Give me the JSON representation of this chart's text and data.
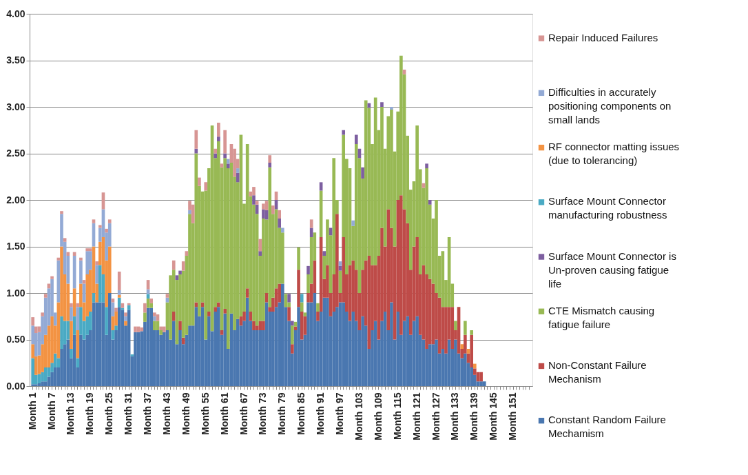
{
  "chart_data": {
    "type": "bar",
    "stacked": true,
    "legend": "right",
    "grid": "y",
    "categories": [
      "Month 1",
      null,
      null,
      null,
      null,
      null,
      "Month 7",
      null,
      null,
      null,
      null,
      null,
      "Month 13",
      null,
      null,
      null,
      null,
      null,
      "Month 19",
      null,
      null,
      null,
      null,
      null,
      "Month 25",
      null,
      null,
      null,
      null,
      null,
      "Month 31",
      null,
      null,
      null,
      null,
      null,
      "Month 37",
      null,
      null,
      null,
      null,
      null,
      "Month 43",
      null,
      null,
      null,
      null,
      null,
      "Month 49",
      null,
      null,
      null,
      null,
      null,
      "Month 55",
      null,
      null,
      null,
      null,
      null,
      "Month 61",
      null,
      null,
      null,
      null,
      null,
      "Month 67",
      null,
      null,
      null,
      null,
      null,
      "Month 73",
      null,
      null,
      null,
      null,
      null,
      "Month 79",
      null,
      null,
      null,
      null,
      null,
      "Month 85",
      null,
      null,
      null,
      null,
      null,
      "Month 91",
      null,
      null,
      null,
      null,
      null,
      "Month 97",
      null,
      null,
      null,
      null,
      null,
      "Month 103",
      null,
      null,
      null,
      null,
      null,
      "Month 109",
      null,
      null,
      null,
      null,
      null,
      "Month 115",
      null,
      null,
      null,
      null,
      null,
      "Month 121",
      null,
      null,
      null,
      null,
      null,
      "Month 127",
      null,
      null,
      null,
      null,
      null,
      "Month 133",
      null,
      null,
      null,
      null,
      null,
      "Month 139",
      null,
      null,
      null,
      null,
      null,
      "Month 145",
      null,
      null,
      null,
      null,
      null,
      "Month 151",
      null,
      null,
      null,
      null,
      null
    ],
    "ylim": [
      0,
      4
    ],
    "yticks": [
      {
        "value": 0,
        "label": "0.00"
      },
      {
        "value": 0.5,
        "label": "0.50"
      },
      {
        "value": 1,
        "label": "1.00"
      },
      {
        "value": 1.5,
        "label": "1.50"
      },
      {
        "value": 2,
        "label": "2.00"
      },
      {
        "value": 2.5,
        "label": "2.50"
      },
      {
        "value": 3,
        "label": "3.00"
      },
      {
        "value": 3.5,
        "label": "3.50"
      },
      {
        "value": 4,
        "label": "4.00"
      }
    ],
    "series": [
      {
        "name": "Constant Random Failure Mechamism",
        "color": "#4a77b0",
        "values": [
          0.02,
          0.02,
          0.03,
          0.05,
          0.05,
          0.1,
          0.15,
          0.2,
          0.2,
          0.4,
          0.45,
          0.5,
          0.3,
          0.55,
          0.2,
          0.55,
          0.5,
          0.55,
          0.6,
          0.9,
          0.9,
          0.9,
          0.9,
          0.55,
          1.0,
          0.5,
          0.6,
          0.85,
          0.82,
          0.65,
          0.82,
          0.32,
          0.58,
          0.58,
          0.59,
          0.69,
          0.84,
          0.84,
          0.6,
          0.6,
          0.55,
          0.58,
          0.6,
          0.5,
          0.7,
          0.45,
          0.6,
          0.45,
          0.55,
          0.65,
          0.65,
          0.85,
          0.75,
          0.85,
          0.5,
          0.75,
          0.59,
          0.8,
          0.85,
          0.55,
          0.78,
          0.4,
          0.78,
          0.6,
          0.72,
          0.65,
          0.7,
          0.95,
          0.7,
          0.6,
          0.6,
          0.6,
          0.6,
          0.9,
          0.8,
          0.8,
          0.85,
          0.9,
          1.1,
          0.85,
          0.7,
          0.35,
          0.6,
          0.85,
          0.5,
          0.55,
          0.9,
          0.9,
          1.0,
          0.7,
          0.8,
          0.95,
          0.95,
          0.75,
          0.8,
          0.85,
          0.9,
          0.9,
          0.8,
          0.7,
          0.8,
          0.7,
          0.6,
          0.75,
          0.65,
          0.4,
          0.6,
          0.7,
          0.5,
          0.7,
          0.8,
          0.6,
          0.9,
          0.5,
          0.8,
          0.55,
          0.7,
          0.75,
          0.55,
          0.7,
          0.75,
          0.55,
          0.5,
          0.4,
          0.45,
          0.45,
          0.5,
          0.35,
          0.4,
          0.35,
          0.5,
          0.4,
          0.5,
          0.35,
          0.3,
          0.35,
          0.25,
          0.2,
          0.12,
          0.05,
          0.05,
          0.05,
          null,
          null,
          null,
          null,
          null,
          null,
          null,
          null,
          null,
          null,
          null,
          null,
          null,
          null
        ]
      },
      {
        "name": "Non-Constant Failure Mechanism",
        "color": "#be4b48",
        "values": [
          null,
          null,
          null,
          null,
          null,
          null,
          null,
          null,
          null,
          null,
          null,
          null,
          null,
          null,
          null,
          null,
          null,
          null,
          null,
          null,
          null,
          null,
          null,
          null,
          null,
          null,
          null,
          null,
          null,
          null,
          null,
          null,
          null,
          null,
          null,
          null,
          null,
          null,
          null,
          null,
          null,
          null,
          null,
          null,
          0.1,
          null,
          0.1,
          0.07,
          null,
          null,
          null,
          0.05,
          null,
          0.05,
          null,
          0.05,
          null,
          0.05,
          0.05,
          0.05,
          0.05,
          null,
          null,
          null,
          null,
          0.1,
          0.1,
          0.1,
          0.1,
          0.1,
          0.05,
          0.1,
          0.1,
          0.1,
          0.05,
          0.15,
          0.2,
          0.2,
          null,
          null,
          0.15,
          0.1,
          0.04,
          0.4,
          0.3,
          0.2,
          0.1,
          0.2,
          0.35,
          0.1,
          0.8,
          0.2,
          0.35,
          0.25,
          0.4,
          1.0,
          0.1,
          0.7,
          0.4,
          0.6,
          0.55,
          0.55,
          0.4,
          0.5,
          0.7,
          1.0,
          0.7,
          0.6,
          0.9,
          1.0,
          0.7,
          1.3,
          0.8,
          1.0,
          1.2,
          1.5,
          1.2,
          1.0,
          0.7,
          0.8,
          0.85,
          0.65,
          0.8,
          0.8,
          0.7,
          0.65,
          0.5,
          0.6,
          0.45,
          0.5,
          0.35,
          0.45,
          0.1,
          0.5,
          0.1,
          0.2,
          0.1,
          0.35,
          0.07,
          0.1,
          0.1,
          null,
          null,
          null,
          null,
          null,
          null,
          null,
          null,
          null,
          null,
          null,
          null,
          null,
          null,
          null
        ]
      },
      {
        "name": "CTE Mismatch causing fatigue failure",
        "color": "#98b954",
        "values": [
          null,
          null,
          null,
          null,
          null,
          null,
          null,
          null,
          null,
          null,
          null,
          null,
          null,
          null,
          null,
          null,
          null,
          null,
          null,
          null,
          null,
          null,
          null,
          null,
          null,
          null,
          null,
          null,
          null,
          null,
          null,
          null,
          null,
          null,
          null,
          0.1,
          0.1,
          0.05,
          0.1,
          0.1,
          0.05,
          null,
          0.3,
          0.69,
          0.45,
          0.69,
          0.5,
          0.72,
          0.85,
          1.2,
          1.1,
          1.6,
          1.4,
          1.19,
          1.6,
          1.54,
          2.21,
          1.6,
          1.73,
          1.75,
          1.62,
          1.94,
          1.62,
          1.65,
          1.47,
          1.95,
          1.16,
          1.55,
          1.24,
          1.25,
          1.2,
          0.7,
          1.1,
          0.79,
          1.5,
          0.9,
          0.85,
          0.6,
          0.55,
          0.14,
          0.05,
          0.2,
          0.05,
          0.24,
          0.1,
          0.04,
          0.2,
          0.5,
          0.3,
          0.09,
          0.5,
          0.25,
          0.49,
          0.62,
          1.25,
          0.15,
          0.24,
          1.1,
          1.24,
          1.04,
          0.37,
          1.35,
          1.45,
          0.98,
          1.72,
          1.59,
          1.3,
          1.8,
          1.35,
          1.3,
          1.05,
          1.0,
          1.27,
          1.02,
          0.95,
          1.5,
          1.45,
          0.94,
          0.86,
          0.7,
          1.2,
          1.13,
          0.83,
          1.14,
          0.8,
          0.7,
          1.0,
          0.45,
          0.6,
          0.29,
          0.75,
          0.25,
          0.1,
          null,
          null,
          0.15,
          null,
          0.05,
          null,
          null,
          null,
          null,
          null,
          null,
          null,
          null,
          null,
          null,
          null,
          null,
          null,
          null,
          null,
          null,
          null,
          null
        ]
      },
      {
        "name": "Surface Mount Connector is Un-proven causing fatigue life",
        "color": "#7d5fa0",
        "values": [
          null,
          null,
          null,
          null,
          null,
          null,
          null,
          null,
          null,
          null,
          null,
          null,
          null,
          null,
          null,
          null,
          null,
          null,
          null,
          null,
          null,
          null,
          null,
          null,
          null,
          null,
          null,
          null,
          null,
          null,
          null,
          null,
          null,
          null,
          null,
          null,
          null,
          null,
          null,
          null,
          null,
          null,
          null,
          null,
          null,
          0.05,
          0.04,
          null,
          null,
          null,
          null,
          0.05,
          null,
          null,
          null,
          null,
          null,
          0.05,
          0.05,
          null,
          0.05,
          0.05,
          null,
          null,
          0.1,
          null,
          null,
          null,
          null,
          0.1,
          0.1,
          0.05,
          0.1,
          0.1,
          0.05,
          null,
          0.1,
          0.1,
          null,
          null,
          0.09,
          0.05,
          null,
          null,
          null,
          null,
          0.09,
          0.1,
          null,
          null,
          0.09,
          0.05,
          null,
          0.08,
          null,
          null,
          0.05,
          0.05,
          null,
          null,
          null,
          0.1,
          0.1,
          0.12,
          null,
          0.05,
          null,
          null,
          null,
          0.05,
          null,
          null,
          null,
          null,
          null,
          null,
          null,
          null,
          null,
          null,
          null,
          null,
          null,
          0.05,
          0.05,
          null,
          null,
          null,
          null,
          null,
          null,
          null,
          null,
          null,
          null,
          null,
          null,
          null,
          null,
          null,
          null,
          null,
          null,
          null,
          null,
          null,
          null,
          null,
          null,
          null,
          null,
          null,
          null,
          null,
          null,
          null
        ]
      },
      {
        "name": "Surface Mount Connector manufacturing robustness",
        "color": "#4aaac4",
        "values": [
          0.28,
          0.1,
          0.1,
          0.1,
          0.15,
          0.1,
          0.1,
          0.15,
          0.1,
          0.35,
          0.25,
          0.2,
          0.1,
          0.2,
          0.1,
          0.3,
          0.2,
          0.2,
          0.2,
          0.1,
          null,
          0.4,
          0.3,
          0.3,
          null,
          0.1,
          0.05,
          0.1,
          0.02,
          null,
          0.05,
          0.02,
          null,
          null,
          null,
          null,
          0.05,
          null,
          null,
          null,
          null,
          null,
          null,
          null,
          null,
          null,
          null,
          null,
          null,
          null,
          null,
          null,
          null,
          null,
          null,
          null,
          null,
          null,
          null,
          null,
          null,
          null,
          null,
          null,
          null,
          null,
          null,
          null,
          null,
          null,
          null,
          null,
          null,
          null,
          null,
          null,
          null,
          null,
          null,
          null,
          null,
          null,
          null,
          null,
          0.09,
          null,
          null,
          null,
          null,
          null,
          null,
          null,
          null,
          null,
          null,
          null,
          null,
          null,
          null,
          null,
          null,
          null,
          null,
          null,
          null,
          null,
          null,
          null,
          null,
          null,
          null,
          null,
          null,
          null,
          null,
          null,
          null,
          null,
          null,
          null,
          null,
          null,
          null,
          null,
          null,
          null,
          null,
          null,
          null,
          null,
          null,
          null,
          null,
          null,
          null,
          null,
          null,
          null,
          null,
          null,
          null,
          null,
          null,
          null,
          null,
          null,
          null,
          null,
          null,
          null,
          null,
          null,
          null,
          null,
          null,
          null
        ]
      },
      {
        "name": "RF connector matting issues (due to tolerancing)",
        "color": "#f39343",
        "values": [
          0.15,
          0.2,
          0.2,
          0.3,
          0.35,
          0.45,
          0.5,
          0.3,
          0.6,
          0.75,
          0.5,
          0.4,
          0.3,
          0.3,
          0.3,
          0.25,
          0.2,
          0.45,
          0.45,
          0.5,
          0.2,
          0.25,
          0.4,
          0.5,
          0.5,
          0.15,
          0.15,
          0.03,
          null,
          0.05,
          null,
          null,
          null,
          null,
          null,
          null,
          null,
          null,
          null,
          null,
          null,
          null,
          null,
          null,
          null,
          null,
          null,
          null,
          null,
          null,
          null,
          null,
          null,
          null,
          null,
          null,
          null,
          null,
          null,
          null,
          null,
          null,
          null,
          null,
          null,
          null,
          null,
          null,
          null,
          null,
          null,
          null,
          null,
          null,
          null,
          null,
          null,
          null,
          null,
          null,
          null,
          null,
          null,
          null,
          null,
          null,
          null,
          null,
          null,
          null,
          null,
          null,
          null,
          null,
          null,
          null,
          null,
          null,
          null,
          null,
          null,
          null,
          null,
          null,
          null,
          null,
          null,
          null,
          null,
          null,
          null,
          null,
          null,
          null,
          null,
          null,
          null,
          null,
          null,
          null,
          null,
          null,
          null,
          null,
          null,
          null,
          null,
          null,
          null,
          null,
          null,
          null,
          null,
          null,
          0.05,
          null,
          0.05,
          null,
          0.05,
          null,
          null,
          null,
          null,
          null,
          null,
          null,
          null,
          null,
          null,
          null,
          null,
          null,
          null,
          null,
          null,
          null
        ]
      },
      {
        "name": "Difficulties in accurately positioning components on small lands",
        "color": "#93aad5",
        "values": [
          0.2,
          0.25,
          0.25,
          0.3,
          0.4,
          0.4,
          0.4,
          0.14,
          0.45,
          0.35,
          0.35,
          0.3,
          0.15,
          0.35,
          0.25,
          0.25,
          0.2,
          0.25,
          0.2,
          0.25,
          0.2,
          0.15,
          0.3,
          0.3,
          0.25,
          0.15,
          null,
          0.05,
          null,
          0.05,
          null,
          null,
          null,
          null,
          null,
          null,
          0.05,
          null,
          0.05,
          null,
          null,
          null,
          0.05,
          null,
          null,
          null,
          null,
          null,
          null,
          0.04,
          null,
          null,
          null,
          null,
          null,
          null,
          null,
          null,
          null,
          null,
          null,
          0.05,
          null,
          null,
          0.05,
          null,
          null,
          null,
          null,
          null,
          null,
          null,
          null,
          null,
          null,
          null,
          null,
          null,
          0.05,
          null,
          null,
          null,
          null,
          null,
          null,
          null,
          null,
          null,
          null,
          null,
          null,
          null,
          null,
          null,
          null,
          null,
          0.05,
          null,
          null,
          null,
          0.06,
          null,
          null,
          null,
          null,
          null,
          null,
          null,
          null,
          null,
          null,
          null,
          0.03,
          null,
          null,
          null,
          null,
          null,
          null,
          null,
          null,
          null,
          null,
          null,
          null,
          null,
          null,
          null,
          null,
          null,
          null,
          null,
          null,
          null,
          null,
          null,
          null,
          null,
          null,
          null,
          null,
          null,
          null,
          null,
          null,
          null,
          null,
          null,
          null,
          null,
          null,
          null,
          null,
          null,
          null,
          null
        ]
      },
      {
        "name": "Repair Induced Failures",
        "color": "#d79593",
        "values": [
          0.09,
          0.07,
          0.06,
          0.04,
          0.04,
          0.05,
          0.03,
          null,
          0.03,
          0.03,
          0.04,
          0.04,
          0.04,
          0.04,
          0.04,
          0.03,
          0.04,
          0.03,
          0.03,
          0.04,
          0.04,
          0.03,
          0.18,
          0.04,
          0.04,
          0.04,
          0.04,
          0.2,
          0.05,
          0.04,
          0.02,
          null,
          0.06,
          0.06,
          0.04,
          0.1,
          0.1,
          0.05,
          0.04,
          0.07,
          0.04,
          0.06,
          0.04,
          null,
          0.1,
          null,
          null,
          0.1,
          0.05,
          0.1,
          0.2,
          0.2,
          0.09,
          null,
          0.09,
          null,
          null,
          0.05,
          0.15,
          0.04,
          0.25,
          null,
          0.2,
          0.3,
          0.1,
          null,
          null,
          null,
          0.05,
          0.09,
          0.04,
          0.13,
          0.06,
          0.1,
          0.08,
          0.09,
          0.09,
          0.09,
          null,
          null,
          null,
          null,
          null,
          null,
          null,
          null,
          null,
          0.09,
          null,
          null,
          null,
          null,
          null,
          null,
          null,
          null,
          null,
          null,
          null,
          null,
          null,
          null,
          null,
          null,
          null,
          null,
          null,
          null,
          null,
          null,
          null,
          null,
          null,
          null,
          null,
          null,
          0.05,
          null,
          null,
          null,
          null,
          null,
          0.05,
          null,
          null,
          null,
          null,
          null,
          null,
          null,
          null,
          null,
          null,
          null,
          null,
          null,
          null,
          null,
          null,
          null,
          null,
          null,
          null,
          null,
          null,
          null,
          null,
          null,
          null,
          null,
          null,
          null,
          null,
          null,
          null,
          null
        ]
      }
    ]
  }
}
